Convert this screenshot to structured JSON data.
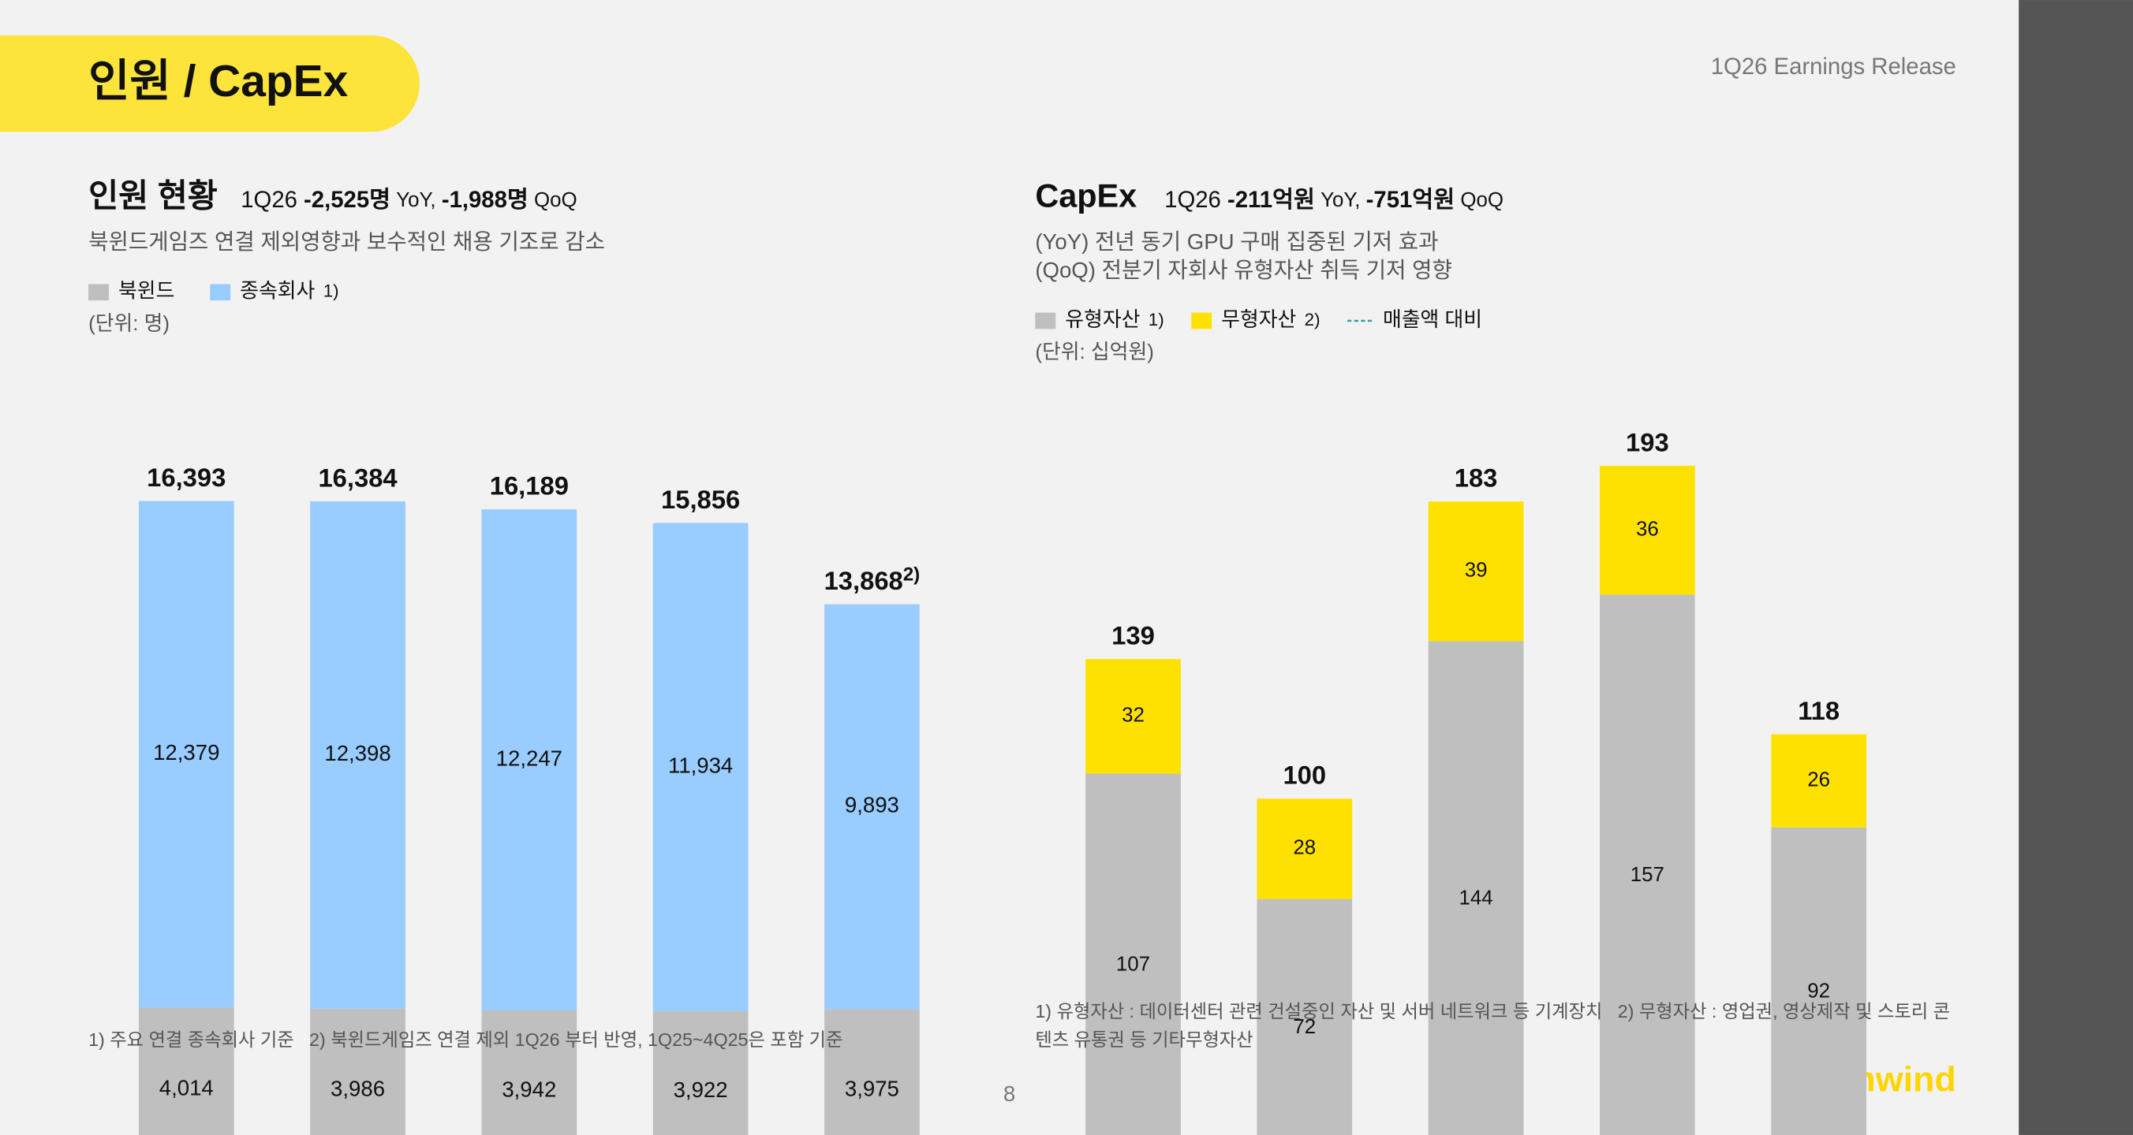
{
  "header": {
    "title": "인원 / CapEx",
    "doc": "1Q26 Earnings Release"
  },
  "chart_data": [
    {
      "type": "stacked_bar",
      "title": "인원 현황",
      "headline": [
        "1Q26 ",
        "-2,525명",
        " YoY, ",
        "-1,988명",
        " QoQ"
      ],
      "description": [
        "북윈드게임즈 연결 제외영향과 보수적인 채용 기조로 감소"
      ],
      "unit": "(단위: 명)",
      "categories": [
        null,
        null,
        null,
        null,
        null
      ],
      "series": [
        {
          "name": "북윈드",
          "color": "#bfbfbf",
          "values": [
            4014,
            3986,
            3942,
            3922,
            3975
          ],
          "value_labels": [
            "4,014",
            "3,986",
            "3,942",
            "3,922",
            "3,975"
          ]
        },
        {
          "name": "종속회사",
          "marker": "1)",
          "color": "#99ccff",
          "values": [
            12379,
            12398,
            12247,
            11934,
            9893
          ],
          "value_labels": [
            "12,379",
            "12,398",
            "12,247",
            "11,934",
            "9,893"
          ]
        }
      ],
      "totals": [
        16393,
        16384,
        16189,
        15856,
        13868
      ],
      "total_labels": [
        "16,393",
        "16,384",
        "16,189",
        "15,856",
        "13,868"
      ],
      "total_markers": [
        null,
        null,
        null,
        null,
        "2)"
      ],
      "footnotes": [
        "1) 주요 연결 종속회사 기준   2) 북윈드게임즈 연결 제외 1Q26 부터 반영, 1Q25~4Q25은 포함 기준"
      ]
    },
    {
      "type": "stacked_bar",
      "title": "CapEx",
      "headline": [
        "1Q26 ",
        "-211억원",
        " YoY, ",
        "-751억원",
        " QoQ"
      ],
      "description": [
        "(YoY) 전년 동기 GPU 구매 집중된 기저 효과",
        "(QoQ) 전분기 자회사 유형자산 취득 기저 영향"
      ],
      "unit": "(단위: 십억원)",
      "categories": [
        null,
        null,
        null,
        null,
        null
      ],
      "series": [
        {
          "name": "유형자산",
          "marker": "1)",
          "color": "#bfbfbf",
          "values": [
            107,
            72,
            144,
            157,
            92
          ]
        },
        {
          "name": "무형자산",
          "marker": "2)",
          "color": "#ffe100",
          "values": [
            32,
            28,
            39,
            36,
            26
          ]
        }
      ],
      "lines": [
        {
          "name": "매출액 대비",
          "color": "#2a9fb8"
        }
      ],
      "totals": [
        139,
        100,
        183,
        193,
        118
      ],
      "footnotes": [
        "1) 유형자산 : 데이터센터 관련 건설중인 자산 및 서버 네트워크 등 기계장치   2) 무형자산 : 영업권, 영상제작 및 스토리 콘",
        "텐츠 유통권 등 기타무형자산"
      ]
    }
  ],
  "footer": {
    "page": "8",
    "logo": "northwind"
  }
}
